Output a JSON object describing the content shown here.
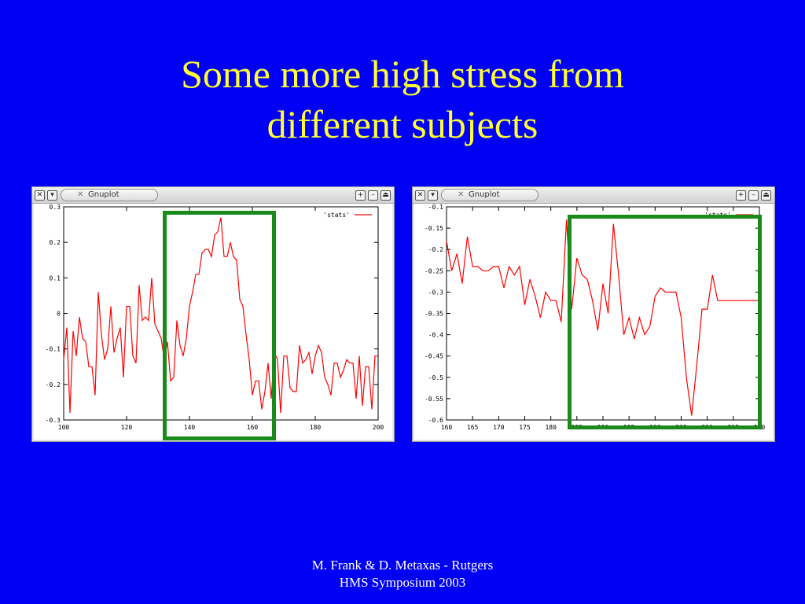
{
  "slide": {
    "title_line1": "Some more high stress from",
    "title_line2": "different subjects",
    "footer_line1": "M. Frank & D. Metaxas - Rutgers",
    "footer_line2": "HMS Symposium 2003"
  },
  "windows": [
    {
      "title": "Gnuplot",
      "close_icon": "close-icon",
      "menu_icon": "chevron-down-icon"
    },
    {
      "title": "Gnuplot",
      "close_icon": "close-icon",
      "menu_icon": "chevron-down-icon"
    }
  ],
  "colors": {
    "background": "#0000f5",
    "title": "#ffff33",
    "series": "#ff0000",
    "highlight": "#1a8a1a"
  },
  "chart_data": [
    {
      "type": "line",
      "legend_position": "top-right",
      "grid": false,
      "xlim": [
        100,
        200
      ],
      "ylim": [
        -0.3,
        0.3
      ],
      "xticks": [
        "100",
        "120",
        "140",
        "160",
        "180",
        "200"
      ],
      "yticks": [
        "-0.3",
        "-0.2",
        "-0.1",
        "0",
        "0.1",
        "0.2",
        "0.3"
      ],
      "highlight_range": [
        132,
        167
      ],
      "series": [
        {
          "name": "'stats'",
          "color": "#ff0000",
          "x": [
            100,
            101,
            102,
            103,
            104,
            105,
            106,
            107,
            108,
            109,
            110,
            111,
            112,
            113,
            114,
            115,
            116,
            117,
            118,
            119,
            120,
            121,
            122,
            123,
            124,
            125,
            126,
            127,
            128,
            129,
            130,
            131,
            132,
            133,
            134,
            135,
            136,
            137,
            138,
            139,
            140,
            141,
            142,
            143,
            144,
            145,
            146,
            147,
            148,
            149,
            150,
            151,
            152,
            153,
            154,
            155,
            156,
            157,
            158,
            159,
            160,
            161,
            162,
            163,
            164,
            165,
            166,
            167,
            168,
            169,
            170,
            171,
            172,
            173,
            174,
            175,
            176,
            177,
            178,
            179,
            180,
            181,
            182,
            183,
            184,
            185,
            186,
            187,
            188,
            189,
            190,
            191,
            192,
            193,
            194,
            195,
            196,
            197,
            198,
            199,
            200
          ],
          "y": [
            -0.13,
            -0.04,
            -0.28,
            -0.05,
            -0.12,
            -0.01,
            -0.07,
            -0.08,
            -0.15,
            -0.15,
            -0.23,
            0.06,
            -0.06,
            -0.13,
            -0.1,
            0.02,
            -0.11,
            -0.07,
            -0.04,
            -0.18,
            0.02,
            0.02,
            -0.12,
            -0.14,
            0.08,
            -0.02,
            -0.01,
            -0.02,
            0.1,
            -0.03,
            -0.05,
            -0.07,
            -0.13,
            -0.08,
            -0.19,
            -0.18,
            -0.02,
            -0.09,
            -0.12,
            -0.07,
            0.02,
            0.06,
            0.11,
            0.11,
            0.17,
            0.18,
            0.18,
            0.16,
            0.22,
            0.23,
            0.27,
            0.16,
            0.16,
            0.2,
            0.16,
            0.15,
            0.04,
            0.02,
            -0.06,
            -0.13,
            -0.23,
            -0.19,
            -0.19,
            -0.27,
            -0.22,
            -0.14,
            -0.24,
            -0.11,
            -0.13,
            -0.28,
            -0.12,
            -0.12,
            -0.21,
            -0.22,
            -0.22,
            -0.09,
            -0.14,
            -0.13,
            -0.11,
            -0.17,
            -0.12,
            -0.09,
            -0.11,
            -0.18,
            -0.2,
            -0.23,
            -0.14,
            -0.14,
            -0.18,
            -0.16,
            -0.13,
            -0.14,
            -0.14,
            -0.24,
            -0.12,
            -0.26,
            -0.15,
            -0.15,
            -0.27,
            -0.12,
            -0.12
          ]
        }
      ]
    },
    {
      "type": "line",
      "legend_position": "top-right",
      "grid": false,
      "xlim": [
        160,
        220
      ],
      "ylim": [
        -0.6,
        -0.1
      ],
      "xticks": [
        "160",
        "165",
        "170",
        "175",
        "180",
        "185",
        "190",
        "195",
        "200",
        "205",
        "210",
        "215",
        "220"
      ],
      "yticks": [
        "-0.6",
        "-0.55",
        "-0.5",
        "-0.45",
        "-0.4",
        "-0.35",
        "-0.3",
        "-0.25",
        "-0.2",
        "-0.15",
        "-0.1"
      ],
      "highlight_range": [
        180,
        220
      ],
      "series": [
        {
          "name": "'stats'",
          "color": "#ff0000",
          "x": [
            160,
            161,
            162,
            163,
            164,
            165,
            166,
            167,
            168,
            169,
            170,
            171,
            172,
            173,
            174,
            175,
            176,
            177,
            178,
            179,
            180,
            181,
            182,
            183,
            184,
            185,
            186,
            187,
            188,
            189,
            190,
            191,
            192,
            193,
            194,
            195,
            196,
            197,
            198,
            199,
            200,
            201,
            202,
            203,
            204,
            205,
            206,
            207,
            208,
            209,
            210,
            211,
            212,
            213,
            214,
            215,
            216,
            217,
            218,
            219,
            220
          ],
          "y": [
            -0.18,
            -0.25,
            -0.21,
            -0.28,
            -0.17,
            -0.24,
            -0.24,
            -0.25,
            -0.25,
            -0.24,
            -0.24,
            -0.29,
            -0.24,
            -0.26,
            -0.24,
            -0.33,
            -0.27,
            -0.31,
            -0.36,
            -0.3,
            -0.32,
            -0.32,
            -0.37,
            -0.13,
            -0.34,
            -0.22,
            -0.26,
            -0.27,
            -0.32,
            -0.39,
            -0.28,
            -0.35,
            -0.14,
            -0.26,
            -0.4,
            -0.36,
            -0.41,
            -0.36,
            -0.4,
            -0.38,
            -0.31,
            -0.29,
            -0.3,
            -0.3,
            -0.3,
            -0.36,
            -0.5,
            -0.59,
            -0.47,
            -0.34,
            -0.34,
            -0.26,
            -0.32,
            -0.32,
            -0.32,
            -0.32,
            -0.32,
            -0.32,
            -0.32,
            -0.32,
            -0.32
          ]
        }
      ]
    }
  ]
}
